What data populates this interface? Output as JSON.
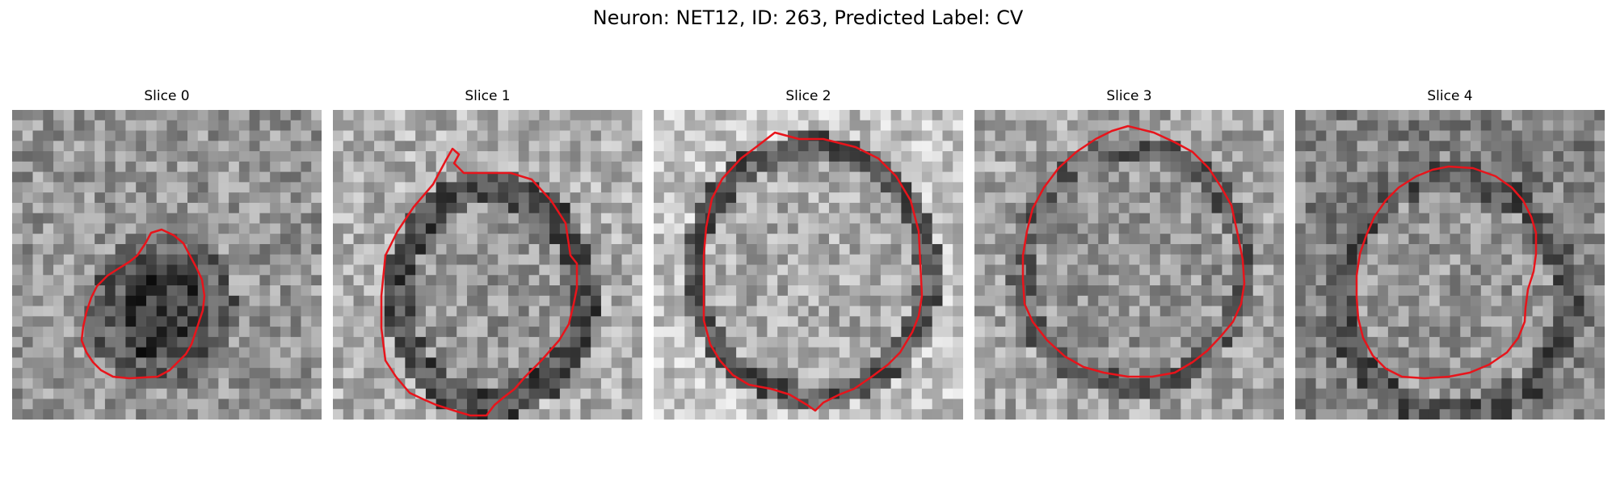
{
  "figure": {
    "title": "Neuron: NET12, ID: 263, Predicted Label: CV"
  },
  "colors": {
    "contour": "#e8141b",
    "background": "#ffffff"
  },
  "slices": [
    {
      "title": "Slice 0"
    },
    {
      "title": "Slice 1"
    },
    {
      "title": "Slice 2"
    },
    {
      "title": "Slice 3"
    },
    {
      "title": "Slice 4"
    }
  ]
}
